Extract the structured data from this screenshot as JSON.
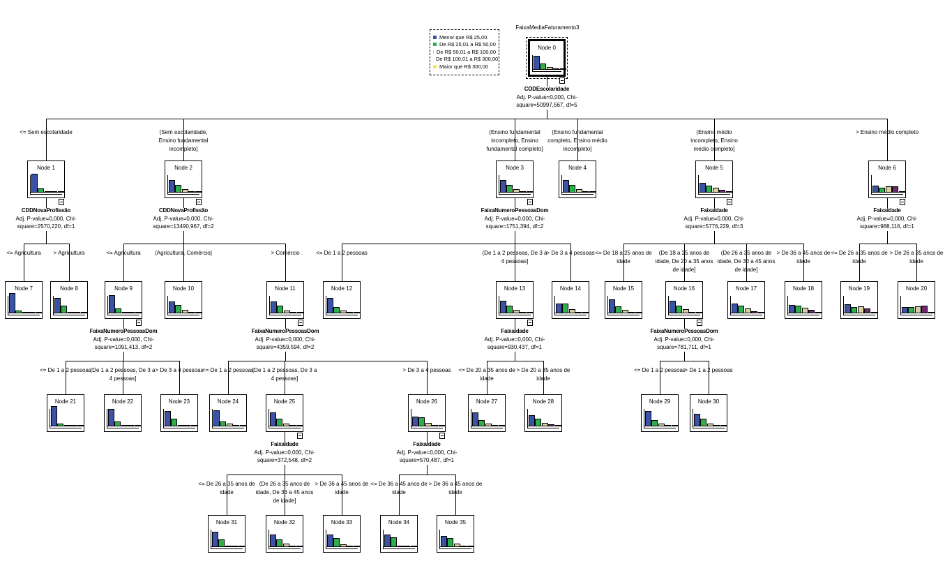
{
  "title": "FaixaMediaFaturamento3",
  "legend": [
    {
      "label": "Menor que R$ 25,00",
      "color": "#3b53a6"
    },
    {
      "label": "De R$ 25,01 a R$ 50,00",
      "color": "#2fae4c"
    },
    {
      "label": "De R$ 50,01 a R$ 100,00",
      "color": "#d9cfa2"
    },
    {
      "label": "De R$ 100,01 a R$ 300,00",
      "color": "#6b2a6f"
    },
    {
      "label": "Maior que R$ 300,00",
      "color": "#f2e66a"
    }
  ],
  "nodes": [
    {
      "id": 0,
      "label": "Node 0",
      "dist": [
        0.55,
        0.25,
        0.12,
        0.05,
        0.03
      ],
      "split": {
        "var": "CODEscolaridade",
        "p": "Adj. P-value=0,000, Chi-",
        "chi": "square=50997,567, df=5"
      }
    },
    {
      "id": 1,
      "label": "Node 1",
      "parent": 0,
      "edge": "<= Sem escolaridade",
      "dist": [
        0.75,
        0.17,
        0.06,
        0.01,
        0.01
      ],
      "split": {
        "var": "CDDNovaProfissão",
        "p": "Adj. P-value=0,000, Chi-",
        "chi": "square=2570,220, df=1"
      }
    },
    {
      "id": 2,
      "label": "Node 2",
      "parent": 0,
      "edge": "(Sem escolaridade,\nEnsino fundamental\nincompleto]",
      "dist": [
        0.5,
        0.3,
        0.14,
        0.03,
        0.03
      ],
      "split": {
        "var": "CDDNovaProfissão",
        "p": "Adj. P-value=0,000, Chi-",
        "chi": "square=13490,967, df=2"
      }
    },
    {
      "id": 3,
      "label": "Node 3",
      "parent": 0,
      "edge": "(Ensino fundamental\nincompleto, Ensino\nfundamental completo]",
      "dist": [
        0.5,
        0.3,
        0.13,
        0.05,
        0.03
      ],
      "split": {
        "var": "FaixaNumeroPessoasDom",
        "p": "Adj. P-value=0,000, Chi-",
        "chi": "square=1751,394, df=2"
      }
    },
    {
      "id": 4,
      "label": "Node 4",
      "parent": 0,
      "edge": "(Ensino fundamental\ncompleto, Ensino médio\nincompleto]",
      "dist": [
        0.5,
        0.3,
        0.13,
        0.05,
        0.03
      ]
    },
    {
      "id": 5,
      "label": "Node 5",
      "parent": 0,
      "edge": "(Ensino médio\nincompleto, Ensino\nmédio completo]",
      "dist": [
        0.4,
        0.28,
        0.2,
        0.1,
        0.03
      ],
      "split": {
        "var": "FaixaIdade",
        "p": "Adj. P-value=0,000, Chi-",
        "chi": "square=5776,229, df=3"
      }
    },
    {
      "id": 6,
      "label": "Node 6",
      "parent": 0,
      "edge": "> Ensino médio completo",
      "dist": [
        0.28,
        0.2,
        0.25,
        0.24,
        0.04
      ],
      "split": {
        "var": "FaixaIdade",
        "p": "Adj. P-value=0,000, Chi-",
        "chi": "square=988,116, df=1"
      }
    },
    {
      "id": 7,
      "label": "Node 7",
      "parent": 1,
      "edge": "<= Agricultura",
      "dist": [
        0.8,
        0.12,
        0.03,
        0.02,
        0.02
      ]
    },
    {
      "id": 8,
      "label": "Node 8",
      "parent": 1,
      "edge": "> Agricultura",
      "dist": [
        0.6,
        0.3,
        0.06,
        0.02,
        0.02
      ]
    },
    {
      "id": 9,
      "label": "Node 9",
      "parent": 2,
      "edge": "<= Agricultura",
      "dist": [
        0.72,
        0.2,
        0.05,
        0.03,
        0.02
      ],
      "split": {
        "var": "FaixaNumeroPessoasDom",
        "p": "Adj. P-value=0,000, Chi-",
        "chi": "square=1091,413, df=2"
      }
    },
    {
      "id": 10,
      "label": "Node 10",
      "parent": 2,
      "edge": "(Agricultura, Comércio]",
      "dist": [
        0.46,
        0.33,
        0.15,
        0.03,
        0.03
      ]
    },
    {
      "id": 11,
      "label": "Node 11",
      "parent": 2,
      "edge": "> Comércio",
      "dist": [
        0.48,
        0.3,
        0.12,
        0.05,
        0.05
      ],
      "split": {
        "var": "FaixaNumeroPessoasDom",
        "p": "Adj. P-value=0,000, Chi-",
        "chi": "square=4359,594, df=2"
      }
    },
    {
      "id": 12,
      "label": "Node 12",
      "parent": 3,
      "edge": "<= De 1 a 2 pessoas",
      "dist": [
        0.6,
        0.25,
        0.1,
        0.03,
        0.03
      ]
    },
    {
      "id": 13,
      "label": "Node 13",
      "parent": 3,
      "edge": "(De 1 a 2 pessoas, De 3 a\n4 pessoas]",
      "dist": [
        0.5,
        0.3,
        0.15,
        0.03,
        0.03
      ],
      "split": {
        "var": "FaixaIdade",
        "p": "Adj. P-value=0,000, Chi-",
        "chi": "square=930,437, df=1"
      }
    },
    {
      "id": 14,
      "label": "Node 14",
      "parent": 3,
      "edge": "> De 3 a 4 pessoas",
      "dist": [
        0.4,
        0.38,
        0.18,
        0.03,
        0.03
      ]
    },
    {
      "id": 15,
      "label": "Node 15",
      "parent": 5,
      "edge": "<= De 18 a 25 anos de\nidade",
      "dist": [
        0.55,
        0.27,
        0.13,
        0.03,
        0.03
      ]
    },
    {
      "id": 16,
      "label": "Node 16",
      "parent": 5,
      "edge": "(De 18 a 25 anos de\nidade, De 20 a 35 anos\nde idade]",
      "dist": [
        0.5,
        0.3,
        0.17,
        0.03,
        0.03
      ],
      "split": {
        "var": "FaixaNumeroPessoasDom",
        "p": "Adj. P-value=0,000, Chi-",
        "chi": "square=781,711, df=1"
      }
    },
    {
      "id": 17,
      "label": "Node 17",
      "parent": 5,
      "edge": "(De 26 a 35 anos de\nidade, De 30 a 45 anos\nde idade]",
      "dist": [
        0.38,
        0.3,
        0.2,
        0.08,
        0.04
      ]
    },
    {
      "id": 18,
      "label": "Node 18",
      "parent": 5,
      "edge": "> De 36 a 45 anos de\nidade",
      "dist": [
        0.33,
        0.3,
        0.23,
        0.13,
        0.02
      ]
    },
    {
      "id": 19,
      "label": "Node 19",
      "parent": 6,
      "edge": "<= De 26 a 35 anos de\nidade",
      "dist": [
        0.36,
        0.25,
        0.28,
        0.2,
        0.03
      ]
    },
    {
      "id": 20,
      "label": "Node 20",
      "parent": 6,
      "edge": "> De 26 a 35 anos de\nidade",
      "dist": [
        0.26,
        0.24,
        0.27,
        0.3,
        0.04
      ]
    },
    {
      "id": 21,
      "label": "Node 21",
      "parent": 9,
      "edge": "<= De 1 a 2 pessoas",
      "dist": [
        0.8,
        0.1,
        0.05,
        0.03,
        0.02
      ]
    },
    {
      "id": 22,
      "label": "Node 22",
      "parent": 9,
      "edge": "(De 1 a 2 pessoas, De 3 a\n4 pessoas]",
      "dist": [
        0.7,
        0.2,
        0.05,
        0.03,
        0.02
      ]
    },
    {
      "id": 23,
      "label": "Node 23",
      "parent": 9,
      "edge": "> De 3 a 4 pessoas",
      "dist": [
        0.6,
        0.3,
        0.06,
        0.02,
        0.02
      ]
    },
    {
      "id": 24,
      "label": "Node 24",
      "parent": 11,
      "edge": "<= De 1 a 2 pessoas",
      "dist": [
        0.65,
        0.2,
        0.1,
        0.03,
        0.02
      ]
    },
    {
      "id": 25,
      "label": "Node 25",
      "parent": 11,
      "edge": "(De 1 a 2 pessoas, De 3 a\n4 pessoas]",
      "dist": [
        0.55,
        0.3,
        0.1,
        0.03,
        0.02
      ],
      "split": {
        "var": "FaixaIdade",
        "p": "Adj. P-value=0,000, Chi-",
        "chi": "square=372,548, df=2"
      }
    },
    {
      "id": 26,
      "label": "Node 26",
      "parent": 11,
      "edge": "> De 3 a 4 pessoas",
      "dist": [
        0.4,
        0.35,
        0.15,
        0.05,
        0.05
      ],
      "split": {
        "var": "FaixaIdade",
        "p": "Adj. P-value=0,000, Chi-",
        "chi": "square=570,487, df=1"
      }
    },
    {
      "id": 27,
      "label": "Node 27",
      "parent": 13,
      "edge": "<= De 20 a 35 anos de\nidade",
      "dist": [
        0.55,
        0.25,
        0.1,
        0.06,
        0.04
      ]
    },
    {
      "id": 28,
      "label": "Node 28",
      "parent": 13,
      "edge": "> De 20 a 35 anos de\nidade",
      "dist": [
        0.45,
        0.3,
        0.15,
        0.07,
        0.03
      ]
    },
    {
      "id": 29,
      "label": "Node 29",
      "parent": 16,
      "edge": "<= De 1 a 2 pessoas",
      "dist": [
        0.6,
        0.25,
        0.1,
        0.03,
        0.02
      ]
    },
    {
      "id": 30,
      "label": "Node 30",
      "parent": 16,
      "edge": "> De 1 a 2 pessoas",
      "dist": [
        0.5,
        0.3,
        0.1,
        0.05,
        0.05
      ]
    },
    {
      "id": 31,
      "label": "Node 31",
      "parent": 25,
      "edge": "<= De 26 a 35 anos de\nidade",
      "dist": [
        0.6,
        0.3,
        0.06,
        0.02,
        0.02
      ]
    },
    {
      "id": 32,
      "label": "Node 32",
      "parent": 25,
      "edge": "(De 26 a 35 anos de\nidade, De 36 a 45 anos\nde idade]",
      "dist": [
        0.5,
        0.3,
        0.15,
        0.03,
        0.02
      ]
    },
    {
      "id": 33,
      "label": "Node 33",
      "parent": 25,
      "edge": "> De 36 a 45 anos de\nidade",
      "dist": [
        0.5,
        0.35,
        0.1,
        0.03,
        0.02
      ]
    },
    {
      "id": 34,
      "label": "Node 34",
      "parent": 26,
      "edge": "<= De 36 a 45 anos de\nidade",
      "dist": [
        0.5,
        0.4,
        0.05,
        0.03,
        0.02
      ]
    },
    {
      "id": 35,
      "label": "Node 35",
      "parent": 26,
      "edge": "> De 36 a 45 anos de\nidade",
      "dist": [
        0.45,
        0.35,
        0.13,
        0.04,
        0.03
      ]
    }
  ]
}
